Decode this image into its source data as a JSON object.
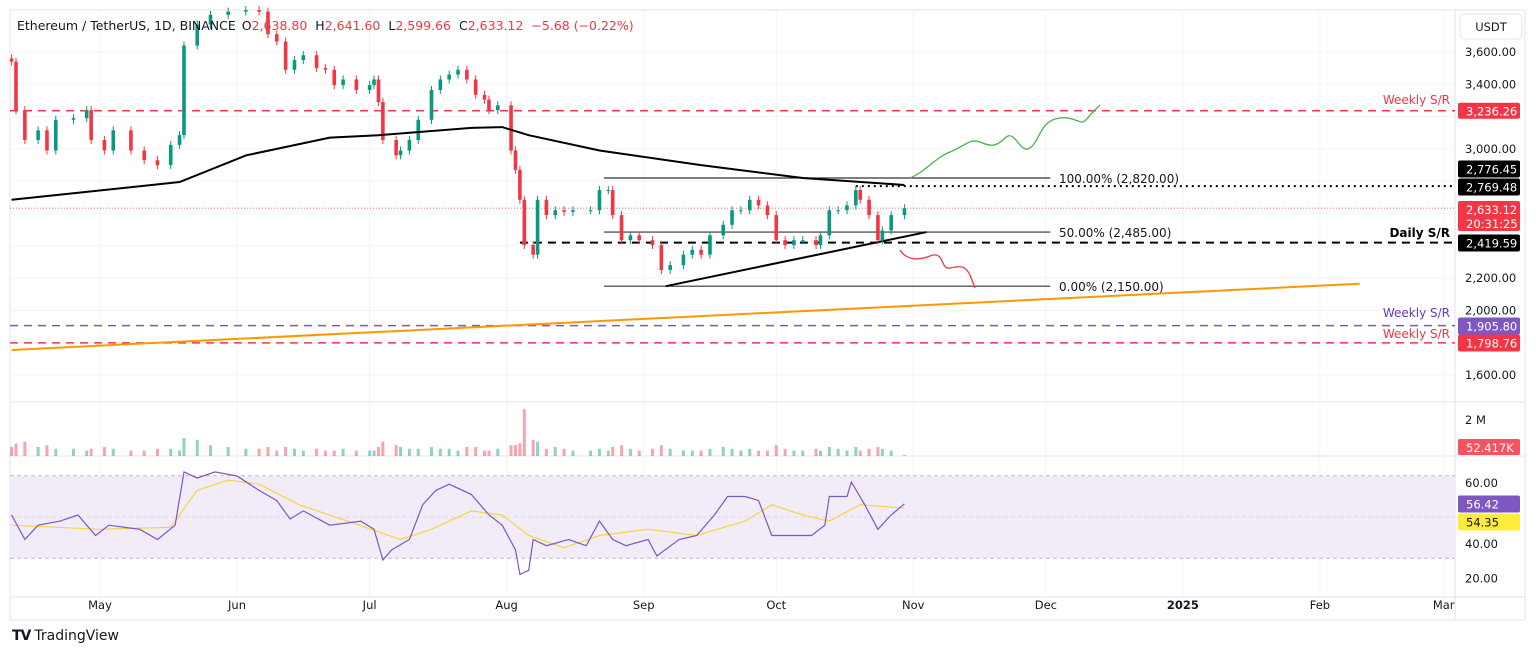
{
  "legend": {
    "symbol": "Ethereum / TetherUS, 1D, BINANCE",
    "o_label": "O",
    "o": "2,638.80",
    "h_label": "H",
    "h": "2,641.60",
    "l_label": "L",
    "l": "2,599.66",
    "c_label": "C",
    "c": "2,633.12",
    "change": "−5.68 (−0.22%)"
  },
  "currency_button": "USDT",
  "price_axis_labels": [
    "3,600.00",
    "3,400.00",
    "3,000.00",
    "2,200.00",
    "2,000.00",
    "1,600.00"
  ],
  "volume_axis_label": "2 M",
  "rsi_axis_labels": [
    "60.00",
    "40.00",
    "20.00"
  ],
  "time_axis_labels": [
    "May",
    "Jun",
    "Jul",
    "Aug",
    "Sep",
    "Oct",
    "Nov",
    "Dec",
    "2025",
    "Feb",
    "Mar"
  ],
  "tags": {
    "weekly_top": "3,236.26",
    "sma": "2,776.45",
    "dotted": "2,769.48",
    "last": "2,633.12",
    "countdown": "20:31:25",
    "daily": "2,419.59",
    "weekly_purple": "1,905.80",
    "weekly_bottom": "1,798.76",
    "volume": "52.417K",
    "rsi": "56.42",
    "rsi_ma": "54.35"
  },
  "annotations": {
    "weekly_top": "Weekly S/R",
    "daily": "Daily S/R",
    "weekly_purple": "Weekly S/R",
    "weekly_bottom": "Weekly S/R",
    "fib100": "100.00% (2,820.00)",
    "fib50": "50.00% (2,485.00)",
    "fib0": "0.00% (2,150.00)"
  },
  "branding": "TradingView",
  "colors": {
    "up": "#089981",
    "down": "#f23645",
    "sma": "#000000",
    "trend": "#ff9800",
    "purple": "#7e57c2",
    "rsi": "#7e57c2",
    "rsi_ma": "#f5d63d",
    "rsi_band": "#ede7f6",
    "green_path": "#4caf50",
    "red_path": "#f23645"
  },
  "chart_data": {
    "type": "candlestick",
    "title": "Ethereum / TetherUS, 1D, BINANCE",
    "ylim": [
      1500,
      3900
    ],
    "candles_date_close_volumeM": [
      [
        "2024-04-11",
        3540,
        0.5
      ],
      [
        "2024-04-12",
        3240,
        0.7
      ],
      [
        "2024-04-14",
        3055,
        0.8
      ],
      [
        "2024-04-17",
        3115,
        0.5
      ],
      [
        "2024-04-19",
        2990,
        0.6
      ],
      [
        "2024-04-21",
        3180,
        0.4
      ],
      [
        "2024-04-25",
        3190,
        0.4
      ],
      [
        "2024-04-28",
        3240,
        0.3
      ],
      [
        "2024-04-29",
        3055,
        0.4
      ],
      [
        "2024-05-02",
        2990,
        0.5
      ],
      [
        "2024-05-04",
        3115,
        0.4
      ],
      [
        "2024-05-08",
        2990,
        0.3
      ],
      [
        "2024-05-11",
        2930,
        0.3
      ],
      [
        "2024-05-14",
        2900,
        0.4
      ],
      [
        "2024-05-17",
        3025,
        0.4
      ],
      [
        "2024-05-19",
        3085,
        0.3
      ],
      [
        "2024-05-20",
        3640,
        1.0
      ],
      [
        "2024-05-23",
        3770,
        0.9
      ],
      [
        "2024-05-26",
        3830,
        0.6
      ],
      [
        "2024-05-30",
        3850,
        0.5
      ],
      [
        "2024-06-03",
        3860,
        0.4
      ],
      [
        "2024-06-06",
        3850,
        0.4
      ],
      [
        "2024-06-08",
        3710,
        0.5
      ],
      [
        "2024-06-10",
        3665,
        0.3
      ],
      [
        "2024-06-12",
        3490,
        0.5
      ],
      [
        "2024-06-14",
        3550,
        0.4
      ],
      [
        "2024-06-16",
        3580,
        0.3
      ],
      [
        "2024-06-19",
        3500,
        0.4
      ],
      [
        "2024-06-21",
        3490,
        0.3
      ],
      [
        "2024-06-23",
        3395,
        0.3
      ],
      [
        "2024-06-25",
        3430,
        0.4
      ],
      [
        "2024-06-28",
        3365,
        0.3
      ],
      [
        "2024-07-01",
        3395,
        0.3
      ],
      [
        "2024-07-02",
        3430,
        0.3
      ],
      [
        "2024-07-03",
        3290,
        0.5
      ],
      [
        "2024-07-04",
        3055,
        0.8
      ],
      [
        "2024-07-07",
        2960,
        0.6
      ],
      [
        "2024-07-08",
        2990,
        0.5
      ],
      [
        "2024-07-10",
        3055,
        0.4
      ],
      [
        "2024-07-12",
        3180,
        0.4
      ],
      [
        "2024-07-15",
        3365,
        0.5
      ],
      [
        "2024-07-17",
        3430,
        0.4
      ],
      [
        "2024-07-19",
        3460,
        0.4
      ],
      [
        "2024-07-21",
        3490,
        0.3
      ],
      [
        "2024-07-23",
        3430,
        0.5
      ],
      [
        "2024-07-25",
        3335,
        0.5
      ],
      [
        "2024-07-27",
        3305,
        0.3
      ],
      [
        "2024-07-28",
        3240,
        0.3
      ],
      [
        "2024-07-30",
        3270,
        0.4
      ],
      [
        "2024-08-02",
        2990,
        0.6
      ],
      [
        "2024-08-03",
        2870,
        0.6
      ],
      [
        "2024-08-04",
        2685,
        0.7
      ],
      [
        "2024-08-05",
        2405,
        2.6
      ],
      [
        "2024-08-07",
        2345,
        0.9
      ],
      [
        "2024-08-08",
        2685,
        0.8
      ],
      [
        "2024-08-10",
        2590,
        0.4
      ],
      [
        "2024-08-12",
        2620,
        0.5
      ],
      [
        "2024-08-14",
        2610,
        0.4
      ],
      [
        "2024-08-16",
        2620,
        0.3
      ],
      [
        "2024-08-20",
        2620,
        0.3
      ],
      [
        "2024-08-22",
        2745,
        0.4
      ],
      [
        "2024-08-24",
        2745,
        0.3
      ],
      [
        "2024-08-25",
        2590,
        0.5
      ],
      [
        "2024-08-27",
        2435,
        0.6
      ],
      [
        "2024-08-29",
        2465,
        0.4
      ],
      [
        "2024-08-31",
        2435,
        0.3
      ],
      [
        "2024-09-03",
        2405,
        0.4
      ],
      [
        "2024-09-05",
        2250,
        0.6
      ],
      [
        "2024-09-07",
        2280,
        0.4
      ],
      [
        "2024-09-10",
        2345,
        0.3
      ],
      [
        "2024-09-12",
        2375,
        0.3
      ],
      [
        "2024-09-14",
        2345,
        0.3
      ],
      [
        "2024-09-16",
        2465,
        0.4
      ],
      [
        "2024-09-19",
        2530,
        0.5
      ],
      [
        "2024-09-21",
        2620,
        0.4
      ],
      [
        "2024-09-23",
        2620,
        0.3
      ],
      [
        "2024-09-25",
        2685,
        0.4
      ],
      [
        "2024-09-27",
        2650,
        0.3
      ],
      [
        "2024-09-29",
        2590,
        0.3
      ],
      [
        "2024-10-01",
        2435,
        0.6
      ],
      [
        "2024-10-03",
        2405,
        0.4
      ],
      [
        "2024-10-05",
        2435,
        0.3
      ],
      [
        "2024-10-07",
        2435,
        0.3
      ],
      [
        "2024-10-10",
        2405,
        0.4
      ],
      [
        "2024-10-11",
        2465,
        0.3
      ],
      [
        "2024-10-13",
        2620,
        0.5
      ],
      [
        "2024-10-15",
        2620,
        0.4
      ],
      [
        "2024-10-17",
        2650,
        0.3
      ],
      [
        "2024-10-19",
        2745,
        0.5
      ],
      [
        "2024-10-20",
        2685,
        0.3
      ],
      [
        "2024-10-22",
        2590,
        0.4
      ],
      [
        "2024-10-24",
        2435,
        0.5
      ],
      [
        "2024-10-25",
        2495,
        0.4
      ],
      [
        "2024-10-27",
        2590,
        0.3
      ],
      [
        "2024-10-30",
        2633.12,
        0.052
      ]
    ],
    "sma_200": [
      [
        "2024-04-11",
        2685
      ],
      [
        "2024-05-19",
        2795
      ],
      [
        "2024-06-03",
        2960
      ],
      [
        "2024-06-22",
        3070
      ],
      [
        "2024-07-03",
        3085
      ],
      [
        "2024-07-24",
        3130
      ],
      [
        "2024-07-31",
        3135
      ],
      [
        "2024-08-06",
        3085
      ],
      [
        "2024-08-22",
        2990
      ],
      [
        "2024-09-14",
        2900
      ],
      [
        "2024-10-07",
        2820
      ],
      [
        "2024-10-30",
        2776.45
      ]
    ],
    "trendline": [
      [
        "2024-04-11",
        1755
      ],
      [
        "2025-02-10",
        2165
      ]
    ],
    "triangle_lower": [
      [
        "2024-09-06",
        2150
      ],
      [
        "2024-11-04",
        2485
      ]
    ],
    "levels": {
      "weekly_top": 3236.26,
      "dotted": 2769.48,
      "daily": 2419.59,
      "weekly_purple": 1905.8,
      "weekly_bottom": 1798.76,
      "fib": [
        2820,
        2485,
        2150
      ]
    },
    "rsi": {
      "ylim": [
        10,
        90
      ],
      "bands": [
        70,
        50,
        30
      ],
      "values": [
        [
          "2024-04-11",
          51
        ],
        [
          "2024-04-14",
          39
        ],
        [
          "2024-04-17",
          46
        ],
        [
          "2024-04-22",
          48
        ],
        [
          "2024-04-26",
          51
        ],
        [
          "2024-04-30",
          41
        ],
        [
          "2024-05-03",
          46
        ],
        [
          "2024-05-10",
          44
        ],
        [
          "2024-05-14",
          39
        ],
        [
          "2024-05-18",
          46
        ],
        [
          "2024-05-20",
          72
        ],
        [
          "2024-05-23",
          69
        ],
        [
          "2024-05-27",
          72
        ],
        [
          "2024-06-01",
          70
        ],
        [
          "2024-06-06",
          63
        ],
        [
          "2024-06-10",
          58
        ],
        [
          "2024-06-13",
          49
        ],
        [
          "2024-06-16",
          53
        ],
        [
          "2024-06-22",
          46
        ],
        [
          "2024-06-29",
          48
        ],
        [
          "2024-07-02",
          44
        ],
        [
          "2024-07-04",
          29
        ],
        [
          "2024-07-06",
          34
        ],
        [
          "2024-07-10",
          39
        ],
        [
          "2024-07-13",
          56
        ],
        [
          "2024-07-16",
          63
        ],
        [
          "2024-07-19",
          66
        ],
        [
          "2024-07-24",
          61
        ],
        [
          "2024-07-28",
          51
        ],
        [
          "2024-07-31",
          46
        ],
        [
          "2024-08-03",
          34
        ],
        [
          "2024-08-04",
          22
        ],
        [
          "2024-08-06",
          24
        ],
        [
          "2024-08-07",
          39
        ],
        [
          "2024-08-10",
          36
        ],
        [
          "2024-08-15",
          39
        ],
        [
          "2024-08-19",
          36
        ],
        [
          "2024-08-22",
          48
        ],
        [
          "2024-08-25",
          39
        ],
        [
          "2024-08-28",
          36
        ],
        [
          "2024-09-02",
          39
        ],
        [
          "2024-09-04",
          31
        ],
        [
          "2024-09-09",
          39
        ],
        [
          "2024-09-13",
          41
        ],
        [
          "2024-09-17",
          51
        ],
        [
          "2024-09-20",
          60
        ],
        [
          "2024-09-24",
          60
        ],
        [
          "2024-09-27",
          58
        ],
        [
          "2024-09-30",
          41
        ],
        [
          "2024-10-04",
          41
        ],
        [
          "2024-10-09",
          41
        ],
        [
          "2024-10-12",
          46
        ],
        [
          "2024-10-13",
          60
        ],
        [
          "2024-10-17",
          60
        ],
        [
          "2024-10-18",
          67
        ],
        [
          "2024-10-21",
          56
        ],
        [
          "2024-10-24",
          44
        ],
        [
          "2024-10-27",
          51
        ],
        [
          "2024-10-30",
          56.42
        ]
      ],
      "ma": [
        [
          "2024-04-11",
          46
        ],
        [
          "2024-05-01",
          44
        ],
        [
          "2024-05-17",
          45
        ],
        [
          "2024-05-23",
          63
        ],
        [
          "2024-05-30",
          68
        ],
        [
          "2024-06-06",
          66
        ],
        [
          "2024-06-15",
          56
        ],
        [
          "2024-06-26",
          48
        ],
        [
          "2024-07-08",
          39
        ],
        [
          "2024-07-15",
          44
        ],
        [
          "2024-07-24",
          53
        ],
        [
          "2024-07-31",
          51
        ],
        [
          "2024-08-06",
          41
        ],
        [
          "2024-08-14",
          35
        ],
        [
          "2024-08-22",
          41
        ],
        [
          "2024-09-02",
          44
        ],
        [
          "2024-09-13",
          41
        ],
        [
          "2024-09-24",
          48
        ],
        [
          "2024-09-30",
          56
        ],
        [
          "2024-10-07",
          51
        ],
        [
          "2024-10-13",
          48
        ],
        [
          "2024-10-20",
          56
        ],
        [
          "2024-10-30",
          54.35
        ]
      ]
    }
  }
}
